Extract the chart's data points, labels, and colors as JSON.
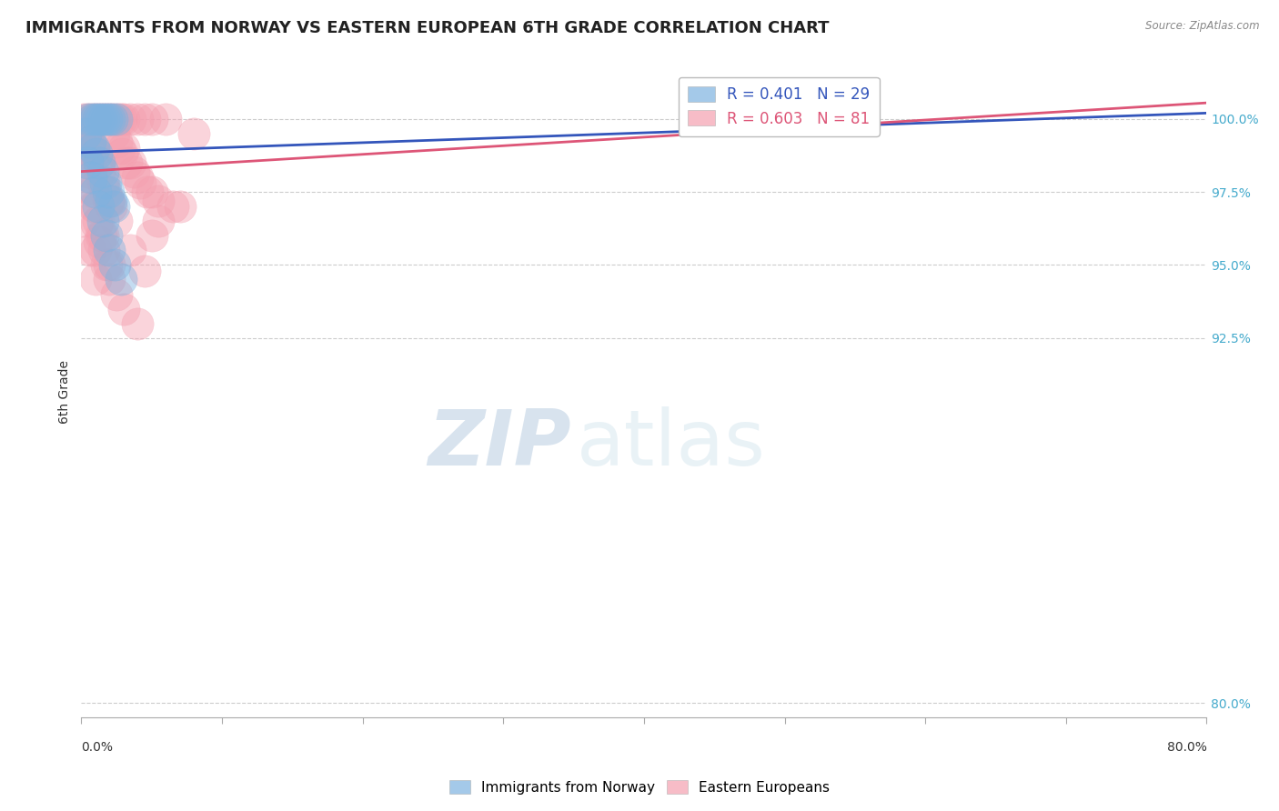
{
  "title": "IMMIGRANTS FROM NORWAY VS EASTERN EUROPEAN 6TH GRADE CORRELATION CHART",
  "source": "Source: ZipAtlas.com",
  "ylabel": "6th Grade",
  "xmin": 0.0,
  "xmax": 80.0,
  "ymin": 79.5,
  "ymax": 101.8,
  "yticks": [
    80.0,
    92.5,
    95.0,
    97.5,
    100.0
  ],
  "ytick_labels": [
    "80.0%",
    "92.5%",
    "95.0%",
    "97.5%",
    "100.0%"
  ],
  "norway_R": 0.401,
  "norway_N": 29,
  "eastern_R": 0.603,
  "eastern_N": 81,
  "norway_color": "#7EB3E0",
  "eastern_color": "#F4A0B0",
  "norway_line_color": "#3355BB",
  "eastern_line_color": "#DD5577",
  "norway_x": [
    0.5,
    0.8,
    1.0,
    1.2,
    1.4,
    1.6,
    1.8,
    2.0,
    2.2,
    2.5,
    0.3,
    0.6,
    0.9,
    1.1,
    1.3,
    1.5,
    1.7,
    1.9,
    2.1,
    2.3,
    0.4,
    0.7,
    1.0,
    1.2,
    1.5,
    1.8,
    2.0,
    2.4,
    2.8
  ],
  "norway_y": [
    100.0,
    100.0,
    100.0,
    100.0,
    100.0,
    100.0,
    100.0,
    100.0,
    100.0,
    100.0,
    99.5,
    99.2,
    99.0,
    98.8,
    98.5,
    98.2,
    97.8,
    97.5,
    97.2,
    97.0,
    98.5,
    98.0,
    97.5,
    97.0,
    96.5,
    96.0,
    95.5,
    95.0,
    94.5
  ],
  "eastern_x": [
    0.2,
    0.4,
    0.6,
    0.8,
    1.0,
    1.2,
    1.4,
    1.6,
    1.8,
    2.0,
    2.2,
    2.4,
    2.6,
    2.8,
    3.0,
    3.5,
    4.0,
    4.5,
    5.0,
    6.0,
    0.3,
    0.5,
    0.7,
    0.9,
    1.1,
    1.3,
    1.5,
    1.7,
    1.9,
    2.1,
    2.3,
    2.5,
    2.7,
    2.9,
    3.2,
    3.7,
    4.2,
    4.7,
    5.5,
    7.0,
    0.2,
    0.4,
    0.6,
    0.8,
    1.0,
    1.2,
    1.4,
    1.6,
    1.8,
    2.0,
    0.3,
    0.5,
    0.7,
    0.9,
    1.1,
    1.3,
    3.0,
    3.5,
    4.0,
    5.0,
    0.2,
    0.6,
    1.0,
    1.5,
    2.0,
    2.5,
    3.0,
    4.0,
    5.0,
    6.5,
    0.4,
    0.8,
    1.2,
    1.6,
    2.0,
    2.5,
    3.5,
    4.5,
    5.5,
    8.0,
    1.0
  ],
  "eastern_y": [
    100.0,
    100.0,
    100.0,
    100.0,
    100.0,
    100.0,
    100.0,
    100.0,
    100.0,
    100.0,
    100.0,
    100.0,
    100.0,
    100.0,
    100.0,
    100.0,
    100.0,
    100.0,
    100.0,
    100.0,
    99.5,
    99.2,
    99.0,
    98.8,
    98.5,
    98.2,
    97.8,
    97.5,
    97.2,
    97.0,
    99.5,
    99.2,
    99.0,
    98.8,
    98.5,
    98.2,
    97.8,
    97.5,
    97.2,
    97.0,
    99.0,
    98.5,
    98.0,
    97.5,
    97.0,
    96.5,
    96.0,
    95.5,
    95.0,
    94.5,
    98.8,
    98.2,
    97.6,
    97.0,
    96.4,
    95.8,
    99.0,
    98.5,
    98.0,
    97.5,
    96.5,
    95.5,
    94.5,
    96.0,
    95.0,
    94.0,
    93.5,
    93.0,
    96.0,
    97.0,
    99.5,
    99.0,
    98.5,
    97.8,
    97.2,
    96.5,
    95.5,
    94.8,
    96.5,
    99.5,
    95.5
  ],
  "watermark_zip": "ZIP",
  "watermark_atlas": "atlas",
  "background_color": "#FFFFFF",
  "grid_color": "#CCCCCC",
  "title_fontsize": 13,
  "legend_fontsize": 12,
  "axis_label_fontsize": 9,
  "marker_size": 9
}
